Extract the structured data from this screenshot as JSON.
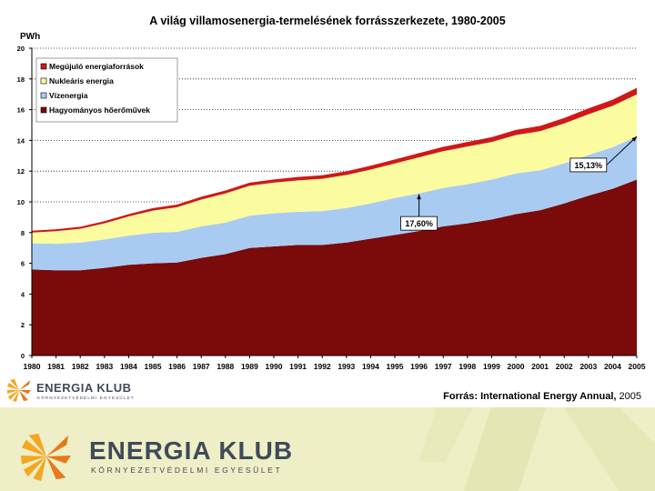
{
  "chart_data": {
    "type": "area",
    "stacked": true,
    "title": "A világ villamosenergia-termelésének forrásszerkezete, 1980-2005",
    "ylabel": "PWh",
    "xlabel": "",
    "ylim": [
      0,
      20
    ],
    "yticks": [
      0,
      2,
      4,
      6,
      8,
      10,
      12,
      14,
      16,
      18,
      20
    ],
    "legend_position": "top-left",
    "x": [
      "1980",
      "1981",
      "1982",
      "1983",
      "1984",
      "1985",
      "1986",
      "1987",
      "1988",
      "1989",
      "1990",
      "1991",
      "1992",
      "1993",
      "1994",
      "1995",
      "1996",
      "1997",
      "1998",
      "1999",
      "2000",
      "2001",
      "2002",
      "2003",
      "2004",
      "2005"
    ],
    "series": [
      {
        "name": "Hagyományos hőerőművek",
        "color": "#7b0a0a",
        "values": [
          5.6,
          5.55,
          5.55,
          5.7,
          5.9,
          6.0,
          6.05,
          6.35,
          6.6,
          7.0,
          7.1,
          7.2,
          7.2,
          7.35,
          7.6,
          7.85,
          8.1,
          8.4,
          8.6,
          8.85,
          9.2,
          9.45,
          9.9,
          10.4,
          10.85,
          11.45
        ]
      },
      {
        "name": "Vízenergia",
        "color": "#a9cbf2",
        "values": [
          1.7,
          1.72,
          1.8,
          1.85,
          1.9,
          1.98,
          2.0,
          2.05,
          2.05,
          2.1,
          2.15,
          2.15,
          2.2,
          2.25,
          2.3,
          2.4,
          2.45,
          2.5,
          2.55,
          2.6,
          2.65,
          2.6,
          2.6,
          2.65,
          2.7,
          2.8
        ]
      },
      {
        "name": "Nukleáris energia",
        "color": "#fbfba0",
        "values": [
          0.7,
          0.82,
          0.9,
          1.05,
          1.25,
          1.45,
          1.6,
          1.75,
          1.9,
          1.95,
          2.0,
          2.05,
          2.1,
          2.15,
          2.2,
          2.25,
          2.35,
          2.4,
          2.45,
          2.45,
          2.5,
          2.55,
          2.6,
          2.65,
          2.7,
          2.75
        ]
      },
      {
        "name": "Megújuló energiaforrások",
        "color": "#d01818",
        "values": [
          0.12,
          0.13,
          0.13,
          0.14,
          0.15,
          0.16,
          0.17,
          0.18,
          0.19,
          0.2,
          0.21,
          0.22,
          0.23,
          0.24,
          0.25,
          0.26,
          0.27,
          0.28,
          0.3,
          0.31,
          0.33,
          0.34,
          0.36,
          0.38,
          0.4,
          0.42
        ]
      }
    ],
    "legend_order": [
      "Megújuló energiaforrások",
      "Nukleáris energia",
      "Vízenergia",
      "Hagyományos hőerőművek"
    ],
    "annotations": [
      {
        "text": "17,60%",
        "x_index": 16,
        "y_value": 10.5,
        "box_x": "1996",
        "box_y": 8.6
      },
      {
        "text": "15,13%",
        "x_index": 25,
        "y_value": 14.25,
        "box_x": "2003",
        "box_y": 12.4
      }
    ],
    "grid": true
  },
  "source": {
    "prefix": "Forrás: International Energy Annual,",
    "year": "2005"
  },
  "branding": {
    "small_name": "ENERGIA KLUB",
    "small_tagline": "KÖRNYEZETVÉDELMI EGYESÜLET",
    "name": "ENERGIA KLUB",
    "tagline": "KÖRNYEZETVÉDELMI EGYESÜLET",
    "logo_colors": [
      "#f5a623",
      "#e8781a"
    ]
  }
}
